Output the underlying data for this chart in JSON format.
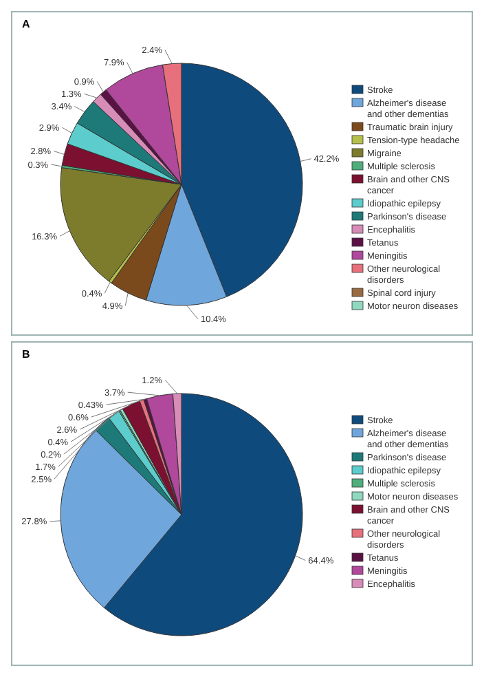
{
  "chart_data": [
    {
      "type": "pie",
      "title": "A",
      "categories": [
        "Stroke",
        "Alzheimer's disease and other dementias",
        "Traumatic brain injury",
        "Tension-type headache",
        "Migraine",
        "Multiple sclerosis",
        "Brain and other CNS cancer",
        "Idiopathic epilepsy",
        "Parkinson's disease",
        "Encephalitis",
        "Tetanus",
        "Meningitis",
        "Other neurological disorders",
        "Spinal cord injury",
        "Motor neuron diseases"
      ],
      "values": [
        42.2,
        10.4,
        4.9,
        0.4,
        16.3,
        0.3,
        2.8,
        2.9,
        3.4,
        1.3,
        0.9,
        7.9,
        2.4,
        null,
        null
      ],
      "value_labels": [
        "42.2%",
        "10.4%",
        "4.9%",
        "0.4%",
        "16.3%",
        "0.3%",
        "2.8%",
        "2.9%",
        "3.4%",
        "1.3%",
        "0.9%",
        "7.9%",
        "2.4%",
        null,
        null
      ],
      "colors": [
        "#0f4a7c",
        "#6fa6dc",
        "#7b4a1c",
        "#b5c04a",
        "#7c7c2c",
        "#4fae7c",
        "#7c1030",
        "#5ccccc",
        "#1e7a78",
        "#d88cb8",
        "#5a1244",
        "#b0489c",
        "#e8707c",
        "#9a6a40",
        "#90d8c0"
      ],
      "legend": "right"
    },
    {
      "type": "pie",
      "title": "B",
      "categories": [
        "Stroke",
        "Alzheimer's disease and other dementias",
        "Parkinson's disease",
        "Idiopathic epilepsy",
        "Multiple sclerosis",
        "Motor neuron diseases",
        "Brain and other CNS cancer",
        "Other neurological disorders",
        "Tetanus",
        "Meningitis",
        "Encephalitis"
      ],
      "values": [
        64.4,
        27.8,
        2.5,
        1.7,
        0.2,
        0.4,
        2.6,
        0.6,
        0.43,
        3.7,
        1.2
      ],
      "value_labels": [
        "64.4%",
        "27.8%",
        "2.5%",
        "1.7%",
        "0.2%",
        "0.4%",
        "2.6%",
        "0.6%",
        "0.43%",
        "3.7%",
        "1.2%"
      ],
      "colors": [
        "#0f4a7c",
        "#6fa6dc",
        "#1e7a78",
        "#5ccccc",
        "#4fae7c",
        "#90d8c0",
        "#7c1030",
        "#e8707c",
        "#5a1244",
        "#b0489c",
        "#d88cb8"
      ],
      "legend": "right"
    }
  ]
}
